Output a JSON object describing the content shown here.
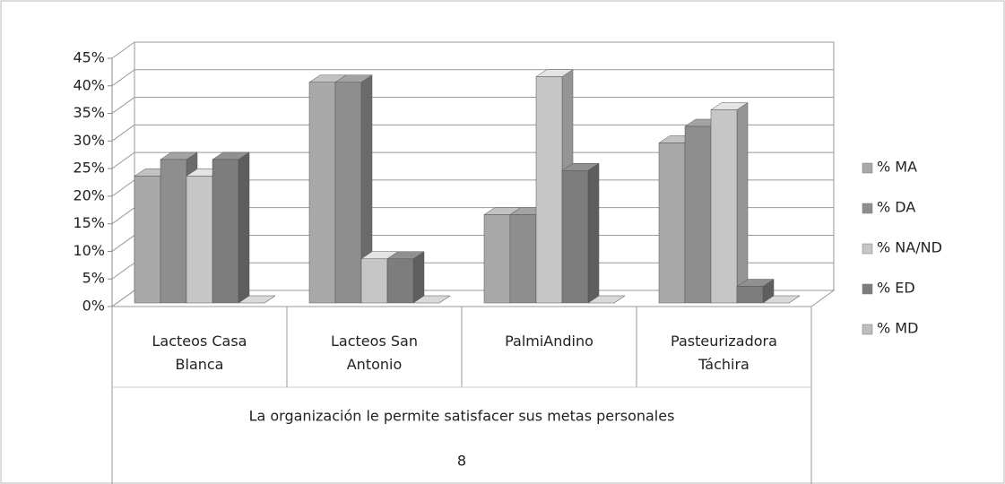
{
  "chart_data": {
    "type": "bar3d",
    "categories": [
      "Lacteos Casa Blanca",
      "Lacteos San Antonio",
      "PalmiAndino",
      "Pasteurizadora Táchira"
    ],
    "group_label": "La organización le permite satisfacer sus metas personales",
    "group_number": "8",
    "series": [
      {
        "name": "% MA",
        "color": "#a9a9a9",
        "values": [
          23,
          40,
          16,
          29
        ]
      },
      {
        "name": "% DA",
        "color": "#8e8e8e",
        "values": [
          26,
          40,
          16,
          32
        ]
      },
      {
        "name": "% NA/ND",
        "color": "#c6c6c6",
        "values": [
          23,
          8,
          41,
          35
        ]
      },
      {
        "name": "% ED",
        "color": "#7d7d7d",
        "values": [
          26,
          8,
          24,
          3
        ]
      },
      {
        "name": "% MD",
        "color": "#bdbdbd",
        "values": [
          0,
          0,
          0,
          0
        ]
      }
    ],
    "ylim": [
      0,
      45
    ],
    "yticks": [
      {
        "value": 0,
        "label": "0%"
      },
      {
        "value": 5,
        "label": "5%"
      },
      {
        "value": 10,
        "label": "10%"
      },
      {
        "value": 15,
        "label": "15%"
      },
      {
        "value": 20,
        "label": "20%"
      },
      {
        "value": 25,
        "label": "25%"
      },
      {
        "value": 30,
        "label": "30%"
      },
      {
        "value": 35,
        "label": "35%"
      },
      {
        "value": 40,
        "label": "40%"
      },
      {
        "value": 45,
        "label": "45%"
      }
    ],
    "grid": true,
    "legend": "right"
  }
}
